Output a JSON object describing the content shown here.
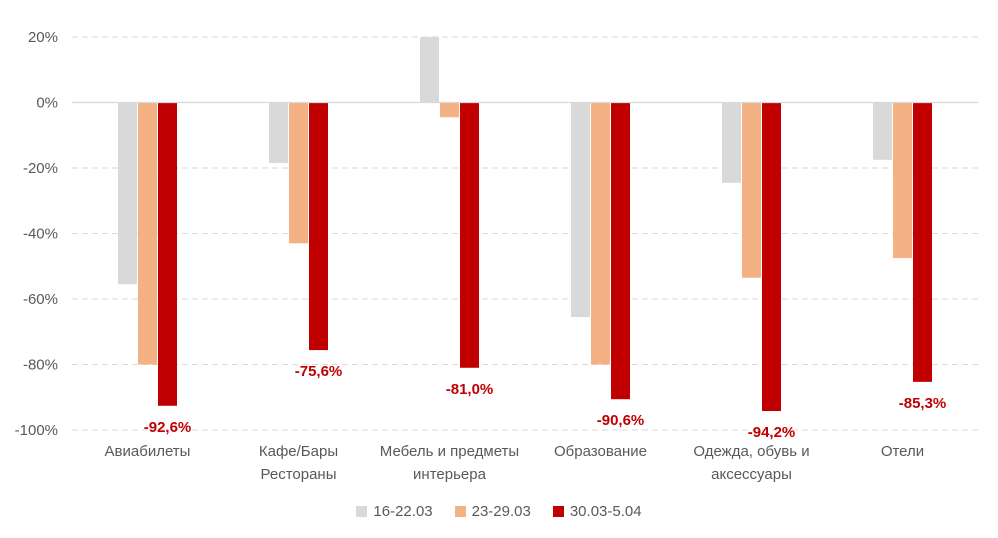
{
  "chart_data": {
    "type": "bar",
    "categories": [
      [
        "Авиабилеты"
      ],
      [
        "Кафе/Бары",
        "Рестораны"
      ],
      [
        "Мебель и предметы",
        "интерьера"
      ],
      [
        "Образование"
      ],
      [
        "Одежда, обувь и",
        "аксессуары"
      ],
      [
        "Отели"
      ]
    ],
    "series": [
      {
        "name": "16-22.03",
        "color": "#d9d9d9",
        "values": [
          -55.5,
          -18.5,
          20,
          -65.5,
          -24.5,
          -17.5
        ]
      },
      {
        "name": "23-29.03",
        "color": "#f4b183",
        "values": [
          -80,
          -43,
          -4.5,
          -80,
          -53.5,
          -47.5
        ]
      },
      {
        "name": "30.03-5.04",
        "color": "#c00000",
        "values": [
          -92.6,
          -75.6,
          -81.0,
          -90.6,
          -94.2,
          -85.3
        ]
      }
    ],
    "data_labels": {
      "series": "30.03-5.04",
      "labels": [
        "-92,6%",
        "-75,6%",
        "-81,0%",
        "-90,6%",
        "-94,2%",
        "-85,3%"
      ],
      "color": "#c00000"
    },
    "yticks": [
      20,
      0,
      -20,
      -40,
      -60,
      -80,
      -100
    ],
    "ytick_labels": [
      "20%",
      "0%",
      "-20%",
      "-40%",
      "-60%",
      "-80%",
      "-100%"
    ],
    "ylim": [
      -100,
      20
    ],
    "grid": true,
    "legend": "bottom",
    "title": "",
    "xlabel": "",
    "ylabel": ""
  }
}
